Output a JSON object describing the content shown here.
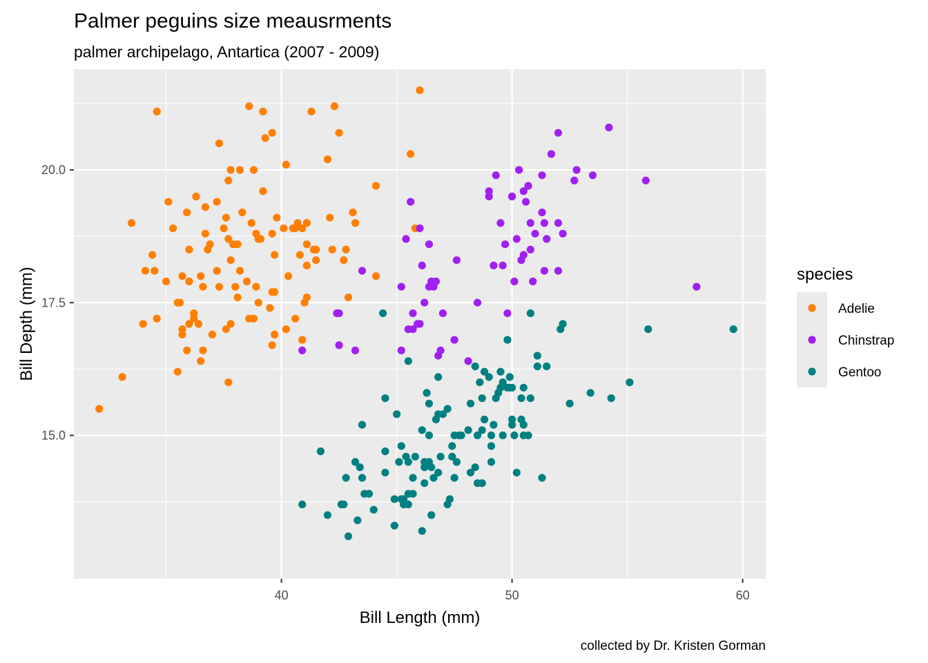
{
  "chart_data": {
    "type": "scatter",
    "title": "Palmer peguins size meausrments",
    "subtitle": "palmer archipelago, Antartica (2007 - 2009)",
    "xlabel": "Bill Length (mm)",
    "ylabel": "Bill Depth (mm)",
    "caption": "collected by Dr. Kristen Gorman",
    "xlim": [
      31.0,
      61.0
    ],
    "ylim": [
      12.3,
      21.9
    ],
    "x_ticks": [
      40,
      50,
      60
    ],
    "x_tick_labels": [
      "40",
      "50",
      "60"
    ],
    "y_ticks": [
      15.0,
      17.5,
      20.0
    ],
    "y_tick_labels": [
      "15.0",
      "17.5",
      "20.0"
    ],
    "grid": true,
    "legend": {
      "title": "species",
      "position": "right"
    },
    "series": [
      {
        "name": "Adelie",
        "color": "#FF7F00",
        "points": [
          [
            32.1,
            15.5
          ],
          [
            33.1,
            16.1
          ],
          [
            33.5,
            19.0
          ],
          [
            34.0,
            17.1
          ],
          [
            34.1,
            18.1
          ],
          [
            34.4,
            18.4
          ],
          [
            34.5,
            18.1
          ],
          [
            34.6,
            21.1
          ],
          [
            34.6,
            17.2
          ],
          [
            35.0,
            17.9
          ],
          [
            35.1,
            19.4
          ],
          [
            35.3,
            18.9
          ],
          [
            35.5,
            17.5
          ],
          [
            35.5,
            16.2
          ],
          [
            35.6,
            17.5
          ],
          [
            35.7,
            18.0
          ],
          [
            35.7,
            17.0
          ],
          [
            35.7,
            16.9
          ],
          [
            35.9,
            19.2
          ],
          [
            35.9,
            16.6
          ],
          [
            36.0,
            17.9
          ],
          [
            36.0,
            18.5
          ],
          [
            36.0,
            17.1
          ],
          [
            36.2,
            17.3
          ],
          [
            36.2,
            17.2
          ],
          [
            36.3,
            19.5
          ],
          [
            36.4,
            17.1
          ],
          [
            36.5,
            18.0
          ],
          [
            36.6,
            17.8
          ],
          [
            36.6,
            16.6
          ],
          [
            36.7,
            19.3
          ],
          [
            36.7,
            18.8
          ],
          [
            36.8,
            18.5
          ],
          [
            36.9,
            18.6
          ],
          [
            37.0,
            16.9
          ],
          [
            37.2,
            18.1
          ],
          [
            37.2,
            19.4
          ],
          [
            37.3,
            17.8
          ],
          [
            37.3,
            20.5
          ],
          [
            37.5,
            18.9
          ],
          [
            37.6,
            17.0
          ],
          [
            37.6,
            19.1
          ],
          [
            37.7,
            19.8
          ],
          [
            37.7,
            18.7
          ],
          [
            37.7,
            16.0
          ],
          [
            37.8,
            17.1
          ],
          [
            37.8,
            18.3
          ],
          [
            37.8,
            20.0
          ],
          [
            37.9,
            18.6
          ],
          [
            38.1,
            18.6
          ],
          [
            38.1,
            17.6
          ],
          [
            38.2,
            20.0
          ],
          [
            38.2,
            18.1
          ],
          [
            38.3,
            19.2
          ],
          [
            38.5,
            17.9
          ],
          [
            38.6,
            21.2
          ],
          [
            38.6,
            17.2
          ],
          [
            38.7,
            19.0
          ],
          [
            38.8,
            17.2
          ],
          [
            38.8,
            20.0
          ],
          [
            38.9,
            17.8
          ],
          [
            38.9,
            18.8
          ],
          [
            39.0,
            17.5
          ],
          [
            39.0,
            18.7
          ],
          [
            39.1,
            18.7
          ],
          [
            39.2,
            19.6
          ],
          [
            39.2,
            21.1
          ],
          [
            39.3,
            20.6
          ],
          [
            39.5,
            17.4
          ],
          [
            39.6,
            17.7
          ],
          [
            39.6,
            18.8
          ],
          [
            39.6,
            20.7
          ],
          [
            39.7,
            17.7
          ],
          [
            39.7,
            18.4
          ],
          [
            39.8,
            19.1
          ],
          [
            40.2,
            20.1
          ],
          [
            40.2,
            17.0
          ],
          [
            40.3,
            18.0
          ],
          [
            40.5,
            18.9
          ],
          [
            40.6,
            18.9
          ],
          [
            40.6,
            17.2
          ],
          [
            40.7,
            19.0
          ],
          [
            40.8,
            18.4
          ],
          [
            40.9,
            18.9
          ],
          [
            41.0,
            17.5
          ],
          [
            41.1,
            17.6
          ],
          [
            41.1,
            19.0
          ],
          [
            41.1,
            18.6
          ],
          [
            41.1,
            18.2
          ],
          [
            41.3,
            21.1
          ],
          [
            41.4,
            18.5
          ],
          [
            41.5,
            18.3
          ],
          [
            41.5,
            18.5
          ],
          [
            42.0,
            20.2
          ],
          [
            42.1,
            19.1
          ],
          [
            42.2,
            18.5
          ],
          [
            42.3,
            21.2
          ],
          [
            42.5,
            20.7
          ],
          [
            42.8,
            18.5
          ],
          [
            42.9,
            17.6
          ],
          [
            43.1,
            19.2
          ],
          [
            43.2,
            19.0
          ],
          [
            44.1,
            19.7
          ],
          [
            44.1,
            18.0
          ],
          [
            45.6,
            20.3
          ],
          [
            45.8,
            18.9
          ],
          [
            46.0,
            21.5
          ],
          [
            39.6,
            16.7
          ],
          [
            40.9,
            16.8
          ],
          [
            42.7,
            18.3
          ],
          [
            36.5,
            16.4
          ],
          [
            38.0,
            17.8
          ],
          [
            40.1,
            18.9
          ],
          [
            39.7,
            16.9
          ]
        ]
      },
      {
        "name": "Chinstrap",
        "color": "#A020F0",
        "points": [
          [
            40.9,
            16.6
          ],
          [
            42.4,
            17.3
          ],
          [
            42.5,
            16.7
          ],
          [
            42.5,
            17.3
          ],
          [
            43.2,
            16.6
          ],
          [
            43.5,
            18.1
          ],
          [
            45.2,
            16.6
          ],
          [
            45.2,
            17.8
          ],
          [
            45.4,
            18.7
          ],
          [
            45.5,
            17.0
          ],
          [
            45.6,
            19.4
          ],
          [
            45.7,
            17.3
          ],
          [
            45.7,
            17.0
          ],
          [
            46.0,
            17.1
          ],
          [
            46.1,
            18.2
          ],
          [
            46.2,
            17.5
          ],
          [
            46.4,
            18.6
          ],
          [
            46.4,
            17.8
          ],
          [
            46.5,
            17.9
          ],
          [
            46.6,
            17.8
          ],
          [
            46.7,
            17.9
          ],
          [
            46.8,
            16.5
          ],
          [
            46.9,
            16.6
          ],
          [
            47.0,
            17.3
          ],
          [
            47.5,
            16.8
          ],
          [
            47.6,
            18.3
          ],
          [
            48.1,
            16.4
          ],
          [
            48.5,
            17.5
          ],
          [
            49.0,
            19.6
          ],
          [
            49.0,
            19.5
          ],
          [
            49.2,
            18.2
          ],
          [
            49.3,
            19.9
          ],
          [
            49.6,
            18.2
          ],
          [
            49.7,
            18.6
          ],
          [
            49.8,
            17.3
          ],
          [
            50.0,
            19.5
          ],
          [
            50.2,
            18.7
          ],
          [
            50.3,
            20.0
          ],
          [
            50.5,
            19.6
          ],
          [
            50.5,
            18.4
          ],
          [
            50.6,
            19.4
          ],
          [
            50.7,
            19.7
          ],
          [
            50.8,
            18.5
          ],
          [
            50.8,
            19.0
          ],
          [
            50.9,
            17.9
          ],
          [
            51.0,
            18.8
          ],
          [
            51.3,
            19.2
          ],
          [
            51.3,
            19.9
          ],
          [
            51.4,
            19.0
          ],
          [
            51.5,
            18.7
          ],
          [
            51.7,
            20.3
          ],
          [
            52.0,
            18.1
          ],
          [
            52.0,
            20.7
          ],
          [
            52.0,
            19.0
          ],
          [
            52.2,
            18.8
          ],
          [
            52.7,
            19.8
          ],
          [
            52.8,
            20.0
          ],
          [
            53.5,
            19.9
          ],
          [
            54.2,
            20.8
          ],
          [
            55.8,
            19.8
          ],
          [
            58.0,
            17.8
          ],
          [
            45.9,
            17.1
          ],
          [
            50.4,
            18.3
          ],
          [
            46.0,
            18.9
          ],
          [
            50.1,
            17.9
          ],
          [
            51.4,
            18.1
          ],
          [
            49.5,
            19.0
          ],
          [
            50.0,
            19.5
          ]
        ]
      },
      {
        "name": "Gentoo",
        "color": "#008080",
        "points": [
          [
            40.9,
            13.7
          ],
          [
            41.7,
            14.7
          ],
          [
            42.0,
            13.5
          ],
          [
            42.6,
            13.7
          ],
          [
            42.7,
            13.7
          ],
          [
            42.8,
            14.2
          ],
          [
            42.9,
            13.1
          ],
          [
            43.2,
            14.5
          ],
          [
            43.3,
            13.4
          ],
          [
            43.4,
            14.4
          ],
          [
            43.5,
            14.2
          ],
          [
            43.5,
            15.2
          ],
          [
            43.6,
            13.9
          ],
          [
            43.8,
            13.9
          ],
          [
            44.0,
            13.6
          ],
          [
            44.4,
            17.3
          ],
          [
            44.5,
            15.7
          ],
          [
            44.5,
            14.3
          ],
          [
            44.5,
            14.7
          ],
          [
            44.9,
            13.3
          ],
          [
            44.9,
            13.8
          ],
          [
            45.0,
            15.4
          ],
          [
            45.1,
            14.5
          ],
          [
            45.2,
            13.8
          ],
          [
            45.2,
            14.8
          ],
          [
            45.3,
            13.7
          ],
          [
            45.3,
            13.8
          ],
          [
            45.4,
            14.6
          ],
          [
            45.5,
            13.7
          ],
          [
            45.5,
            13.9
          ],
          [
            45.5,
            14.5
          ],
          [
            45.7,
            13.9
          ],
          [
            45.8,
            14.6
          ],
          [
            46.1,
            13.2
          ],
          [
            46.1,
            15.1
          ],
          [
            46.2,
            14.5
          ],
          [
            46.2,
            14.1
          ],
          [
            46.2,
            14.4
          ],
          [
            46.3,
            15.8
          ],
          [
            46.4,
            15.0
          ],
          [
            46.4,
            15.6
          ],
          [
            46.4,
            14.5
          ],
          [
            46.5,
            13.5
          ],
          [
            46.5,
            14.4
          ],
          [
            46.6,
            14.2
          ],
          [
            46.7,
            15.3
          ],
          [
            46.8,
            15.4
          ],
          [
            46.8,
            14.3
          ],
          [
            46.8,
            16.1
          ],
          [
            47.0,
            15.4
          ],
          [
            47.2,
            13.7
          ],
          [
            47.2,
            15.5
          ],
          [
            47.3,
            13.8
          ],
          [
            47.4,
            14.6
          ],
          [
            47.5,
            14.2
          ],
          [
            47.5,
            15.0
          ],
          [
            47.6,
            14.5
          ],
          [
            47.7,
            15.0
          ],
          [
            47.8,
            15.0
          ],
          [
            48.1,
            15.1
          ],
          [
            48.2,
            14.3
          ],
          [
            48.2,
            15.6
          ],
          [
            48.4,
            14.4
          ],
          [
            48.4,
            16.3
          ],
          [
            48.5,
            14.1
          ],
          [
            48.5,
            15.0
          ],
          [
            48.6,
            16.0
          ],
          [
            48.7,
            14.1
          ],
          [
            48.7,
            15.1
          ],
          [
            48.7,
            15.7
          ],
          [
            48.8,
            16.2
          ],
          [
            49.0,
            16.1
          ],
          [
            49.1,
            14.5
          ],
          [
            49.1,
            14.8
          ],
          [
            49.1,
            15.0
          ],
          [
            49.2,
            15.2
          ],
          [
            49.3,
            15.7
          ],
          [
            49.4,
            15.8
          ],
          [
            49.5,
            15.9
          ],
          [
            49.5,
            16.2
          ],
          [
            49.6,
            15.0
          ],
          [
            49.6,
            16.0
          ],
          [
            49.8,
            15.9
          ],
          [
            49.8,
            16.8
          ],
          [
            49.9,
            16.1
          ],
          [
            50.0,
            15.2
          ],
          [
            50.0,
            15.3
          ],
          [
            50.0,
            15.9
          ],
          [
            50.1,
            15.0
          ],
          [
            50.2,
            14.3
          ],
          [
            50.4,
            15.3
          ],
          [
            50.4,
            15.7
          ],
          [
            50.5,
            15.2
          ],
          [
            50.5,
            15.9
          ],
          [
            50.7,
            15.0
          ],
          [
            50.8,
            15.7
          ],
          [
            50.8,
            17.3
          ],
          [
            51.1,
            16.3
          ],
          [
            51.1,
            16.5
          ],
          [
            51.3,
            14.2
          ],
          [
            51.5,
            16.3
          ],
          [
            52.1,
            17.0
          ],
          [
            52.2,
            17.1
          ],
          [
            52.5,
            15.6
          ],
          [
            53.4,
            15.8
          ],
          [
            54.3,
            15.7
          ],
          [
            55.1,
            16.0
          ],
          [
            55.9,
            17.0
          ],
          [
            59.6,
            17.0
          ],
          [
            45.5,
            16.4
          ],
          [
            47.4,
            14.8
          ],
          [
            48.8,
            15.3
          ],
          [
            46.9,
            14.6
          ],
          [
            49.9,
            15.9
          ],
          [
            50.5,
            15.0
          ],
          [
            45.7,
            14.2
          ]
        ]
      }
    ]
  }
}
